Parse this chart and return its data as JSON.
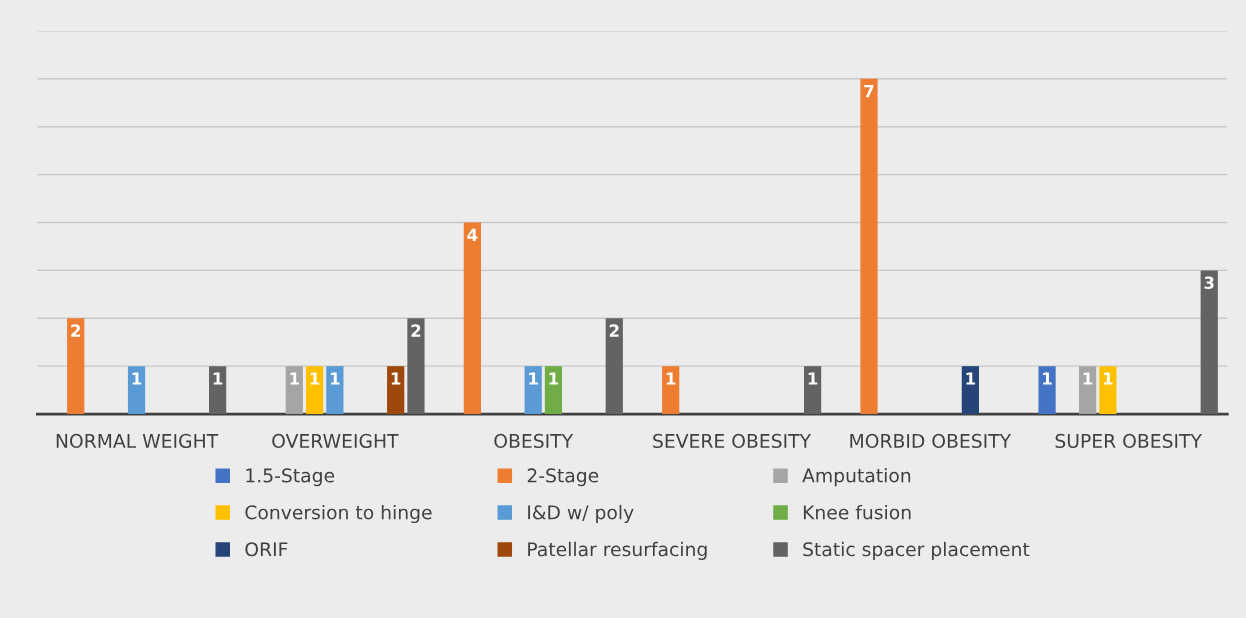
{
  "chart_data": {
    "type": "bar",
    "categories": [
      "NORMAL WEIGHT",
      "OVERWEIGHT",
      "OBESITY",
      "SEVERE OBESITY",
      "MORBID OBESITY",
      "SUPER OBESITY"
    ],
    "series": [
      {
        "name": "1.5-Stage",
        "color": "#4472c4",
        "values": [
          null,
          null,
          null,
          null,
          null,
          1
        ]
      },
      {
        "name": "2-Stage",
        "color": "#ed7d31",
        "values": [
          2,
          null,
          4,
          1,
          7,
          null
        ]
      },
      {
        "name": "Amputation",
        "color": "#a5a5a5",
        "values": [
          null,
          1,
          null,
          null,
          null,
          1
        ]
      },
      {
        "name": "Conversion to hinge",
        "color": "#ffc000",
        "values": [
          null,
          1,
          null,
          null,
          null,
          1
        ]
      },
      {
        "name": "I&D w/ poly",
        "color": "#5b9bd5",
        "values": [
          1,
          1,
          1,
          null,
          null,
          null
        ]
      },
      {
        "name": "Knee fusion",
        "color": "#70ad47",
        "values": [
          null,
          null,
          1,
          null,
          null,
          null
        ]
      },
      {
        "name": "ORIF",
        "color": "#264478",
        "values": [
          null,
          null,
          null,
          null,
          1,
          null
        ]
      },
      {
        "name": "Patellar resurfacing",
        "color": "#9e480e",
        "values": [
          null,
          1,
          null,
          null,
          null,
          null
        ]
      },
      {
        "name": "Static spacer placement",
        "color": "#636363",
        "values": [
          1,
          2,
          2,
          1,
          null,
          3
        ]
      }
    ],
    "ylim": [
      0,
      8
    ],
    "yticks": [
      {
        "value": 0,
        "label": null
      },
      {
        "value": 1,
        "label": null
      },
      {
        "value": 2,
        "label": null
      },
      {
        "value": 3,
        "label": null
      },
      {
        "value": 4,
        "label": null
      },
      {
        "value": 5,
        "label": null
      },
      {
        "value": 6,
        "label": null
      },
      {
        "value": 7,
        "label": null
      },
      {
        "value": 8,
        "label": null
      }
    ],
    "tick_labels": "x",
    "grid": "y",
    "legend": "bottom",
    "data_labels": true
  }
}
